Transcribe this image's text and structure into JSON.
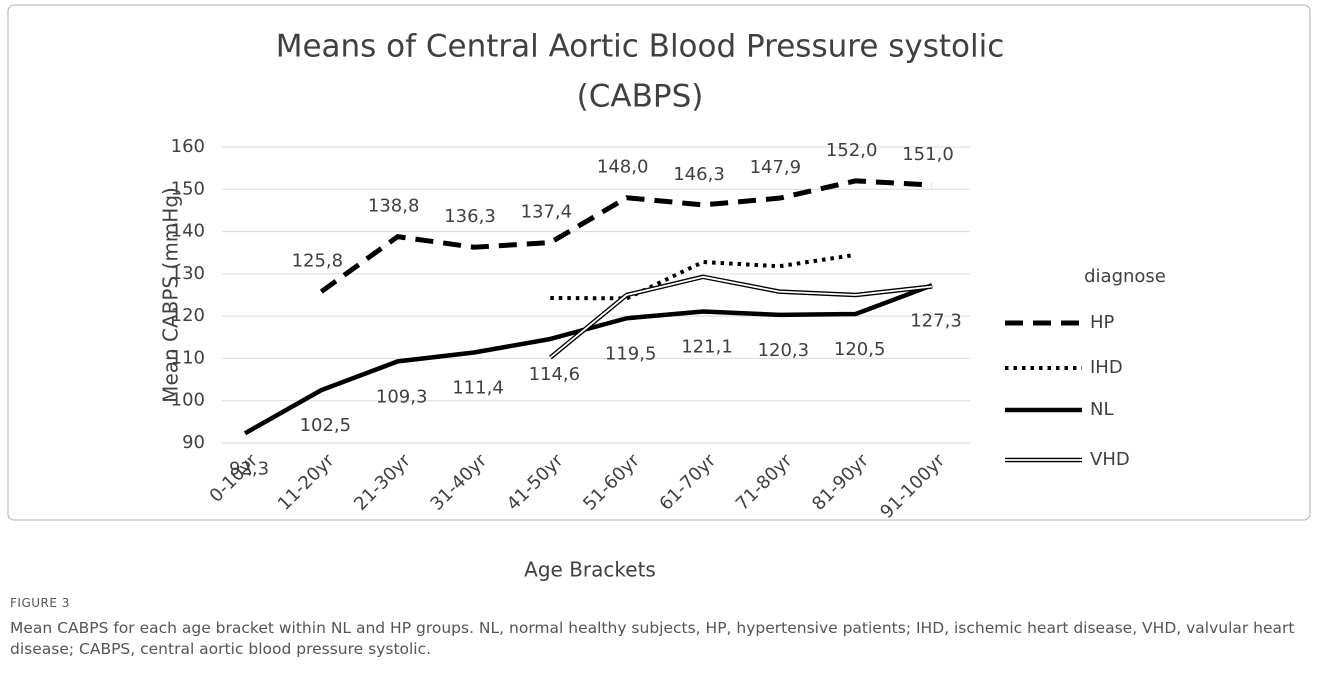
{
  "chart_data": {
    "type": "line",
    "title": [
      "Means of Central Aortic Blood Pressure systolic",
      "(CABPS)"
    ],
    "x_label": "Age Brackets",
    "y_label": "Mean CABPS (mmHg)",
    "legend_title": "diagnose",
    "legend_position": "right",
    "categories": [
      "0-10yr",
      "11-20yr",
      "21-30yr",
      "31-40yr",
      "41-50yr",
      "51-60yr",
      "61-70yr",
      "71-80yr",
      "81-90yr",
      "91-100yr"
    ],
    "series": [
      {
        "name": "HP",
        "color": "#000000",
        "style": "dashed",
        "values": [
          null,
          125.8,
          138.8,
          136.3,
          137.4,
          148.0,
          146.3,
          147.9,
          152.0,
          151.0
        ],
        "value_labels": [
          null,
          "125,8",
          "138,8",
          "136,3",
          "137,4",
          "148,0",
          "146,3",
          "147,9",
          "152,0",
          "151,0"
        ]
      },
      {
        "name": "IHD",
        "color": "#000000",
        "style": "dotted",
        "values": [
          null,
          null,
          null,
          null,
          124.3,
          124.2,
          132.8,
          131.8,
          134.5,
          null
        ]
      },
      {
        "name": "NL",
        "color": "#000000",
        "style": "solid",
        "values": [
          92.3,
          102.5,
          109.3,
          111.4,
          114.6,
          119.5,
          121.1,
          120.3,
          120.5,
          127.3
        ],
        "value_labels": [
          "92,3",
          "102,5",
          "109,3",
          "111,4",
          "114,6",
          "119,5",
          "121,1",
          "120,3",
          "120,5",
          "127,3"
        ]
      },
      {
        "name": "VHD",
        "color": "#000000",
        "style": "double",
        "values": [
          null,
          null,
          null,
          null,
          110.2,
          125.0,
          129.3,
          125.8,
          125.0,
          127.0
        ]
      }
    ],
    "ylim": [
      90,
      160
    ],
    "yticks": [
      90,
      100,
      110,
      120,
      130,
      140,
      150,
      160
    ],
    "grid": true
  },
  "figure_label": "FIGURE 3",
  "caption": "Mean CABPS for each age bracket within NL and HP groups. NL, normal healthy subjects, HP, hypertensive patients; IHD, ischemic heart disease, VHD, valvular heart disease; CABPS, central aortic blood pressure systolic."
}
